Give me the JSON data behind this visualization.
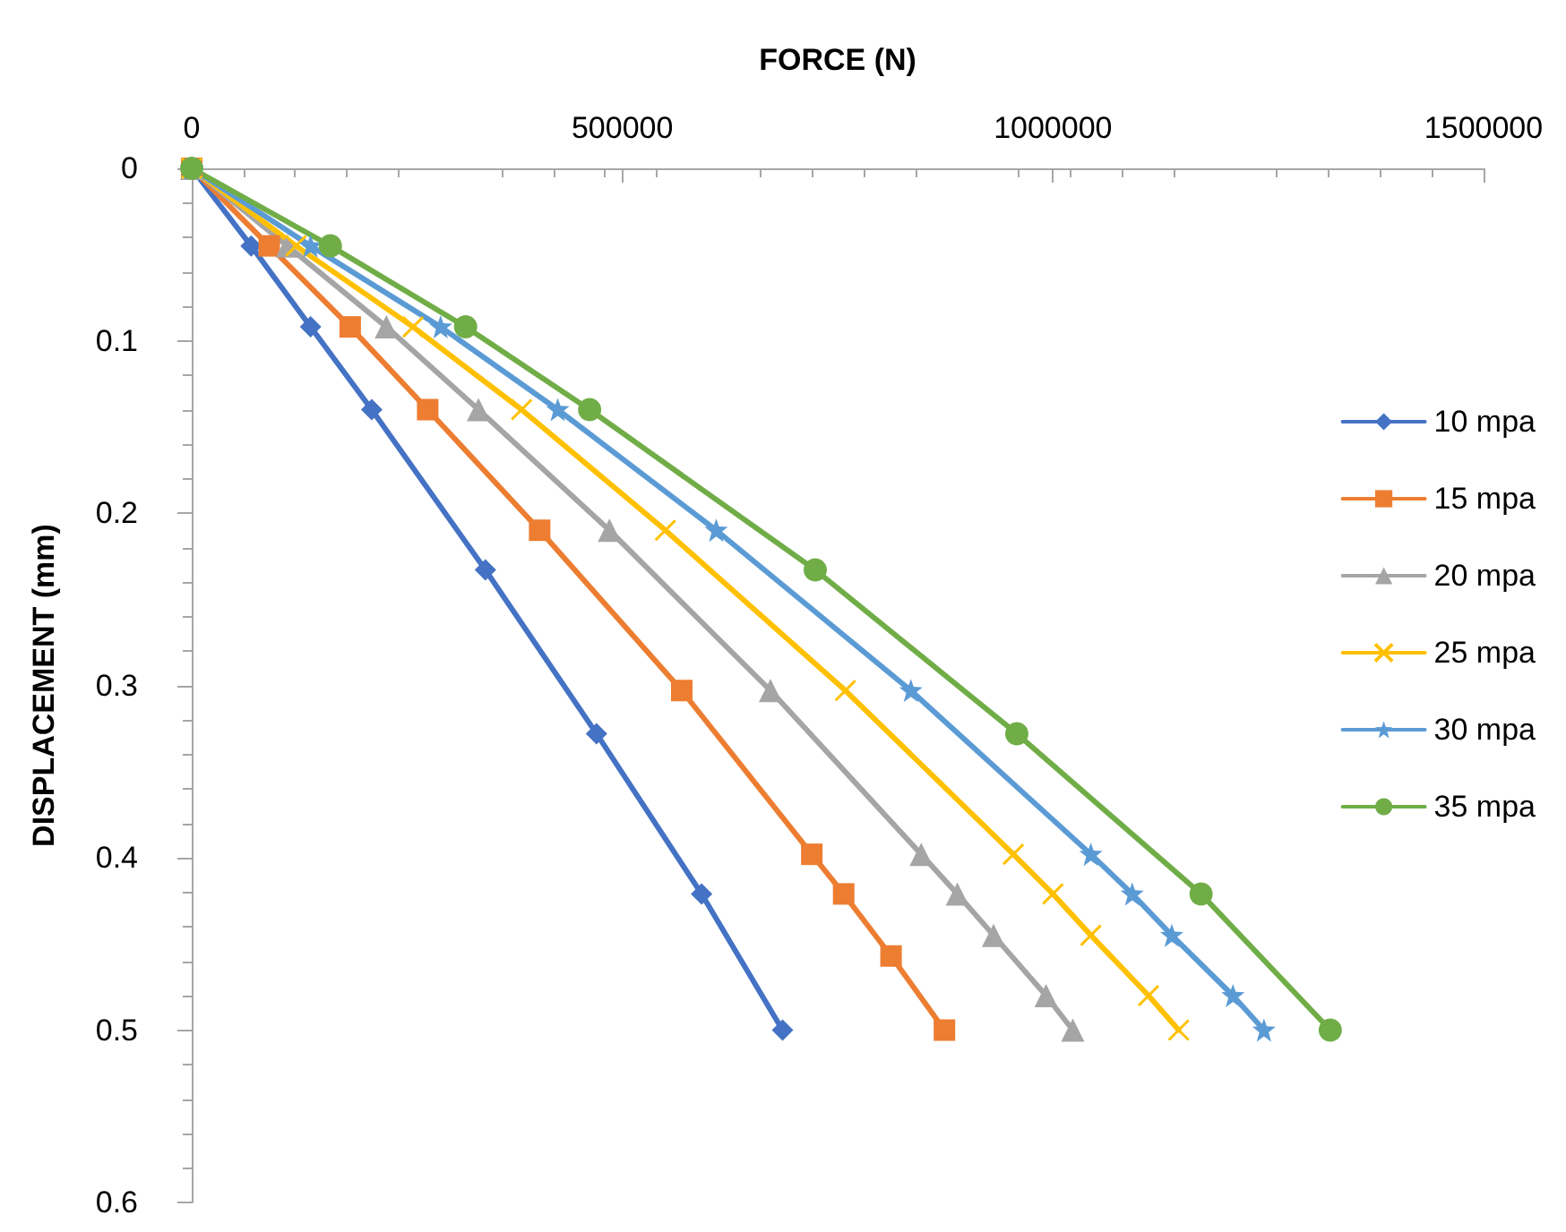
{
  "chart_data": {
    "type": "line",
    "xlabel": "FORCE (N)",
    "ylabel": "DISPLACEMENT (mm)",
    "xlim": [
      0,
      1500000
    ],
    "xticks": [
      0,
      500000,
      1000000,
      1500000
    ],
    "ylim": [
      0.6,
      0
    ],
    "yticks": [
      0,
      0.1,
      0.2,
      0.3,
      0.4,
      0.5,
      0.6
    ],
    "grid": false,
    "legend": "right",
    "line_style": "solid",
    "series": [
      {
        "name": "10 mpa",
        "color": "#4472c4",
        "marker": "diamond",
        "x": [
          0,
          69000,
          138000,
          209000,
          341000,
          470000,
          592000,
          686000
        ],
        "values": [
          0,
          0.045,
          0.092,
          0.14,
          0.233,
          0.328,
          0.421,
          0.5
        ]
      },
      {
        "name": "15 mpa",
        "color": "#ed7d31",
        "marker": "square",
        "x": [
          0,
          90000,
          184000,
          274000,
          404000,
          569000,
          720000,
          757000,
          812000,
          874000
        ],
        "values": [
          0,
          0.045,
          0.092,
          0.14,
          0.21,
          0.303,
          0.398,
          0.421,
          0.457,
          0.5
        ]
      },
      {
        "name": "20 mpa",
        "color": "#a5a5a5",
        "marker": "triangle",
        "x": [
          0,
          111000,
          226000,
          333000,
          485000,
          672000,
          847000,
          889000,
          931000,
          992000,
          1023000
        ],
        "values": [
          0,
          0.045,
          0.092,
          0.14,
          0.21,
          0.303,
          0.398,
          0.421,
          0.445,
          0.48,
          0.5
        ]
      },
      {
        "name": "25 mpa",
        "color": "#ffc000",
        "marker": "cross",
        "x": [
          0,
          121000,
          257000,
          383000,
          550000,
          759000,
          954000,
          1000000,
          1044000,
          1111000,
          1146000
        ],
        "values": [
          0,
          0.045,
          0.092,
          0.14,
          0.21,
          0.303,
          0.398,
          0.421,
          0.445,
          0.48,
          0.5
        ]
      },
      {
        "name": "30 mpa",
        "color": "#5b9bd5",
        "marker": "star",
        "x": [
          0,
          138000,
          289000,
          425000,
          609000,
          835000,
          1044000,
          1092000,
          1138000,
          1209000,
          1245000
        ],
        "values": [
          0,
          0.045,
          0.092,
          0.14,
          0.21,
          0.303,
          0.398,
          0.421,
          0.445,
          0.48,
          0.5
        ]
      },
      {
        "name": "35 mpa",
        "color": "#70ad47",
        "marker": "circle",
        "x": [
          0,
          161000,
          318000,
          462000,
          724000,
          958000,
          1172000,
          1322000
        ],
        "values": [
          0,
          0.045,
          0.092,
          0.14,
          0.233,
          0.328,
          0.421,
          0.5
        ]
      }
    ]
  }
}
